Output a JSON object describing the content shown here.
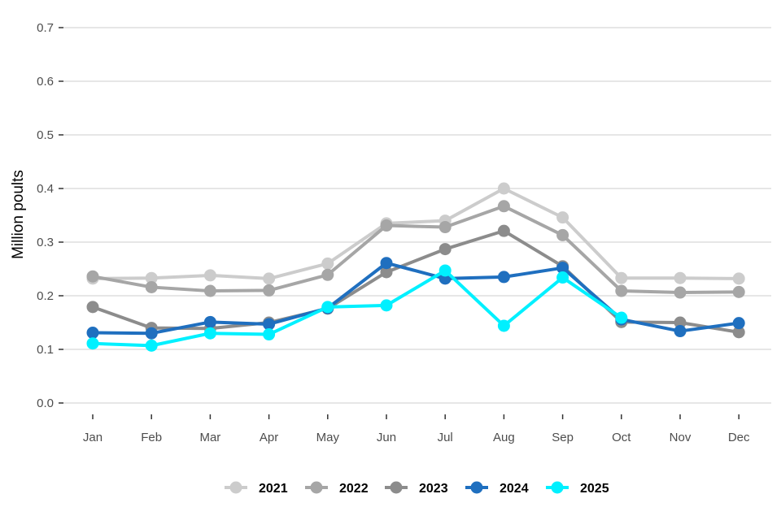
{
  "chart_data": {
    "type": "line",
    "title": "",
    "xlabel": "",
    "ylabel": "Million poults",
    "categories": [
      "Jan",
      "Feb",
      "Mar",
      "Apr",
      "May",
      "Jun",
      "Jul",
      "Aug",
      "Sep",
      "Oct",
      "Nov",
      "Dec"
    ],
    "ylim": [
      0,
      0.7
    ],
    "yticks": [
      "0.0",
      "0.1",
      "0.2",
      "0.3",
      "0.4",
      "0.5",
      "0.6",
      "0.7"
    ],
    "grid": true,
    "legend_position": "bottom",
    "series": [
      {
        "name": "2021",
        "color": "#cccccc",
        "values": [
          0.232,
          0.233,
          0.238,
          0.232,
          0.26,
          0.335,
          0.34,
          0.4,
          0.346,
          0.233,
          0.233,
          0.232
        ]
      },
      {
        "name": "2022",
        "color": "#a6a6a6",
        "values": [
          0.236,
          0.216,
          0.209,
          0.21,
          0.239,
          0.331,
          0.328,
          0.367,
          0.313,
          0.209,
          0.206,
          0.207
        ]
      },
      {
        "name": "2023",
        "color": "#8c8c8c",
        "values": [
          0.179,
          0.14,
          0.139,
          0.15,
          0.176,
          0.244,
          0.287,
          0.321,
          0.255,
          0.151,
          0.15,
          0.132
        ]
      },
      {
        "name": "2024",
        "color": "#1f6fbf",
        "values": [
          0.131,
          0.13,
          0.151,
          0.147,
          0.177,
          0.261,
          0.232,
          0.235,
          0.252,
          0.156,
          0.134,
          0.149
        ]
      },
      {
        "name": "2025",
        "color": "#00f0ff",
        "values": [
          0.111,
          0.107,
          0.13,
          0.128,
          0.179,
          0.182,
          0.247,
          0.144,
          0.234,
          0.159,
          null,
          null
        ]
      }
    ]
  }
}
